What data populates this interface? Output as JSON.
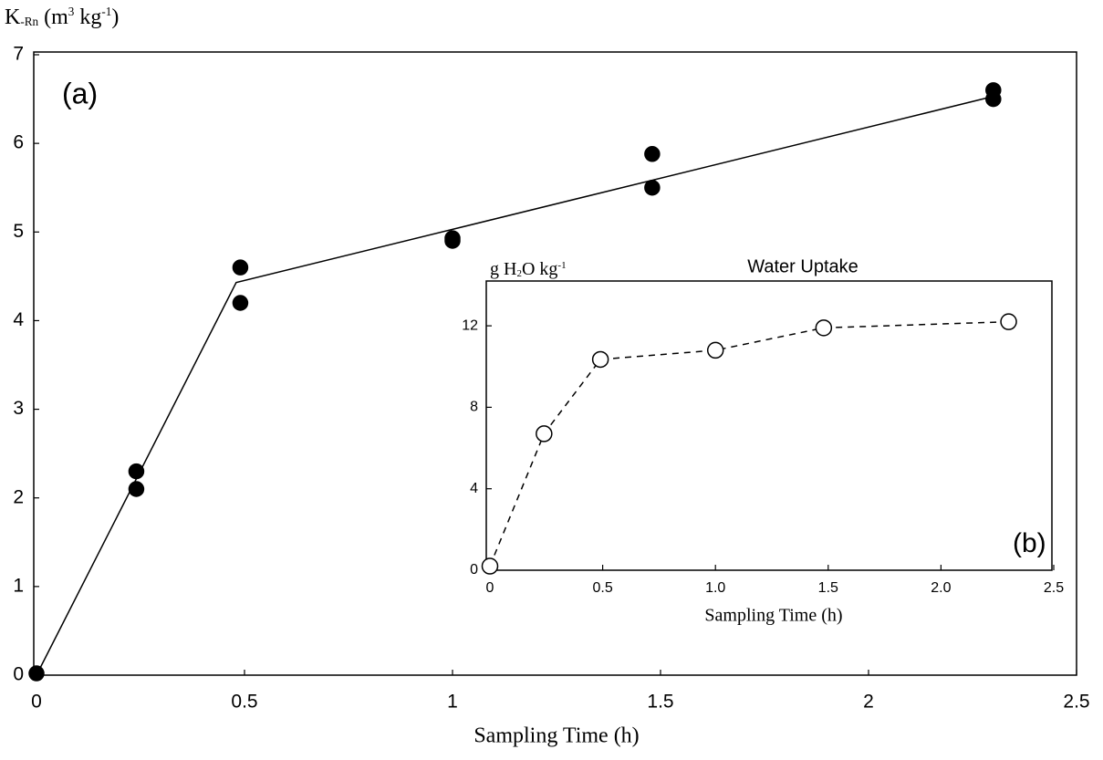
{
  "chart_data": [
    {
      "type": "scatter",
      "y_label": [
        {
          "text": "K"
        },
        {
          "text": "-Rn",
          "shift": "sub"
        },
        {
          "text": " (m"
        },
        {
          "text": "3",
          "shift": "sup"
        },
        {
          "text": " kg"
        },
        {
          "text": "-1",
          "shift": "sup"
        },
        {
          "text": ")"
        }
      ],
      "x_label": "Sampling Time (h)",
      "annotation": "(a)",
      "xlim": [
        0,
        2.5
      ],
      "ylim": [
        0,
        7
      ],
      "xticks": [
        0,
        0.5,
        1,
        1.5,
        2,
        2.5
      ],
      "yticks": [
        0,
        1,
        2,
        3,
        4,
        5,
        6,
        7
      ],
      "series": [
        {
          "marker": "filled",
          "color": "#000000",
          "x": [
            0,
            0.24,
            0.24,
            0.49,
            0.49,
            1.0,
            1.0,
            1.48,
            1.48,
            2.3,
            2.3
          ],
          "values": [
            0.02,
            2.3,
            2.1,
            4.6,
            4.2,
            4.93,
            4.9,
            5.88,
            5.5,
            6.6,
            6.5
          ]
        },
        {
          "line": "solid",
          "color": "#000000",
          "x": [
            0,
            0.48,
            2.3
          ],
          "values": [
            0,
            4.43,
            6.53
          ]
        }
      ]
    },
    {
      "type": "scatter",
      "title": "Water Uptake",
      "y_label": [
        {
          "text": "g H"
        },
        {
          "text": "2",
          "shift": "sub"
        },
        {
          "text": "O kg"
        },
        {
          "text": "-1",
          "shift": "sup"
        }
      ],
      "x_label": "Sampling Time (h)",
      "annotation": "(b)",
      "xlim": [
        0,
        2.5
      ],
      "ylim": [
        0,
        14.2
      ],
      "xticks": [
        0,
        {
          "value": 0.5,
          "label": "0.5"
        },
        {
          "value": 1,
          "label": "1.0"
        },
        {
          "value": 1.5,
          "label": "1.5"
        },
        {
          "value": 2,
          "label": "2.0"
        },
        {
          "value": 2.5,
          "label": "2.5"
        }
      ],
      "yticks": [
        0,
        4,
        8,
        12
      ],
      "series": [
        {
          "marker": "open",
          "line": "dashed",
          "color": "#000000",
          "x": [
            0,
            0.24,
            0.49,
            1.0,
            1.48,
            2.3
          ],
          "values": [
            0.2,
            6.7,
            10.35,
            10.8,
            11.9,
            12.2
          ]
        }
      ]
    }
  ]
}
